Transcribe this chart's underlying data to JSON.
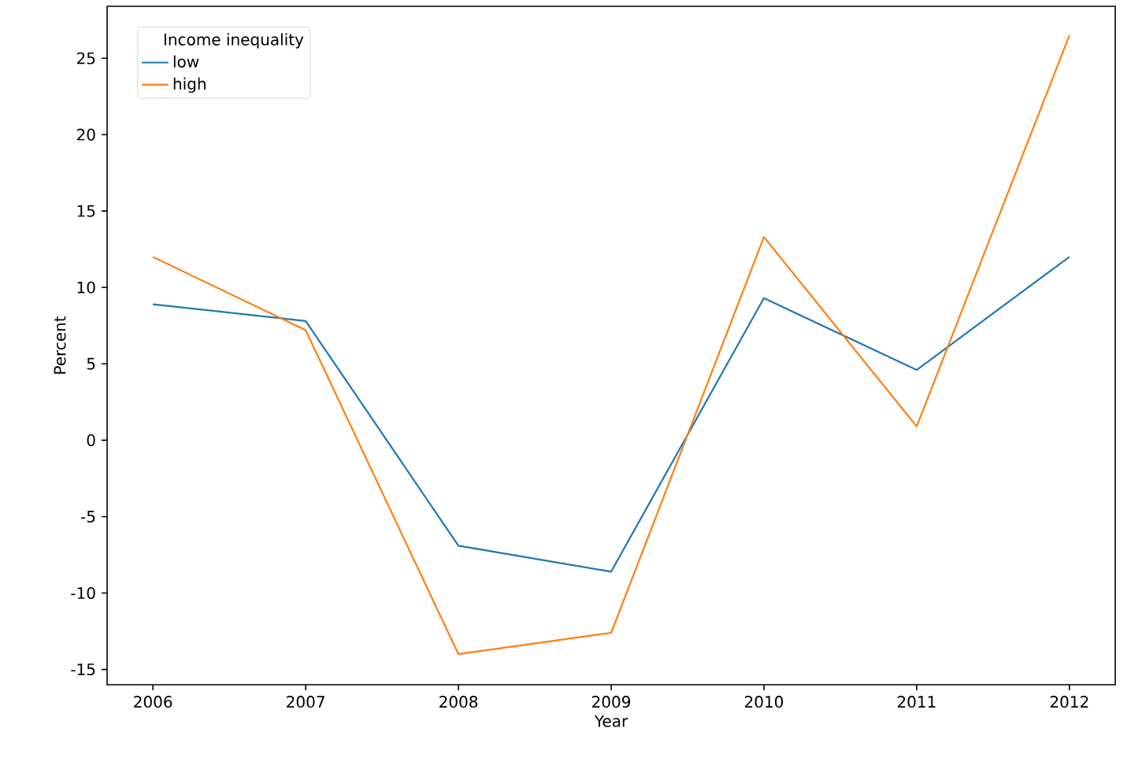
{
  "chart_data": {
    "type": "line",
    "xlabel": "Year",
    "ylabel": "Percent",
    "legend_title": "Income inequality",
    "x": [
      2006,
      2007,
      2008,
      2009,
      2010,
      2011,
      2012
    ],
    "series": [
      {
        "name": "low",
        "color": "#1f77b4",
        "values": [
          8.9,
          7.8,
          -6.9,
          -8.6,
          9.3,
          4.6,
          12.0
        ]
      },
      {
        "name": "high",
        "color": "#ff7f0e",
        "values": [
          12.0,
          7.2,
          -14.0,
          -12.6,
          13.3,
          0.9,
          26.5
        ]
      }
    ],
    "xlim": [
      2005.7,
      2012.3
    ],
    "ylim": [
      -16.0,
      28.4
    ],
    "xticks": [
      2006,
      2007,
      2008,
      2009,
      2010,
      2011,
      2012
    ],
    "yticks": [
      -15,
      -10,
      -5,
      0,
      5,
      10,
      15,
      20,
      25
    ],
    "grid": false,
    "legend": "top left",
    "marker": "none",
    "line_style": "solid"
  }
}
